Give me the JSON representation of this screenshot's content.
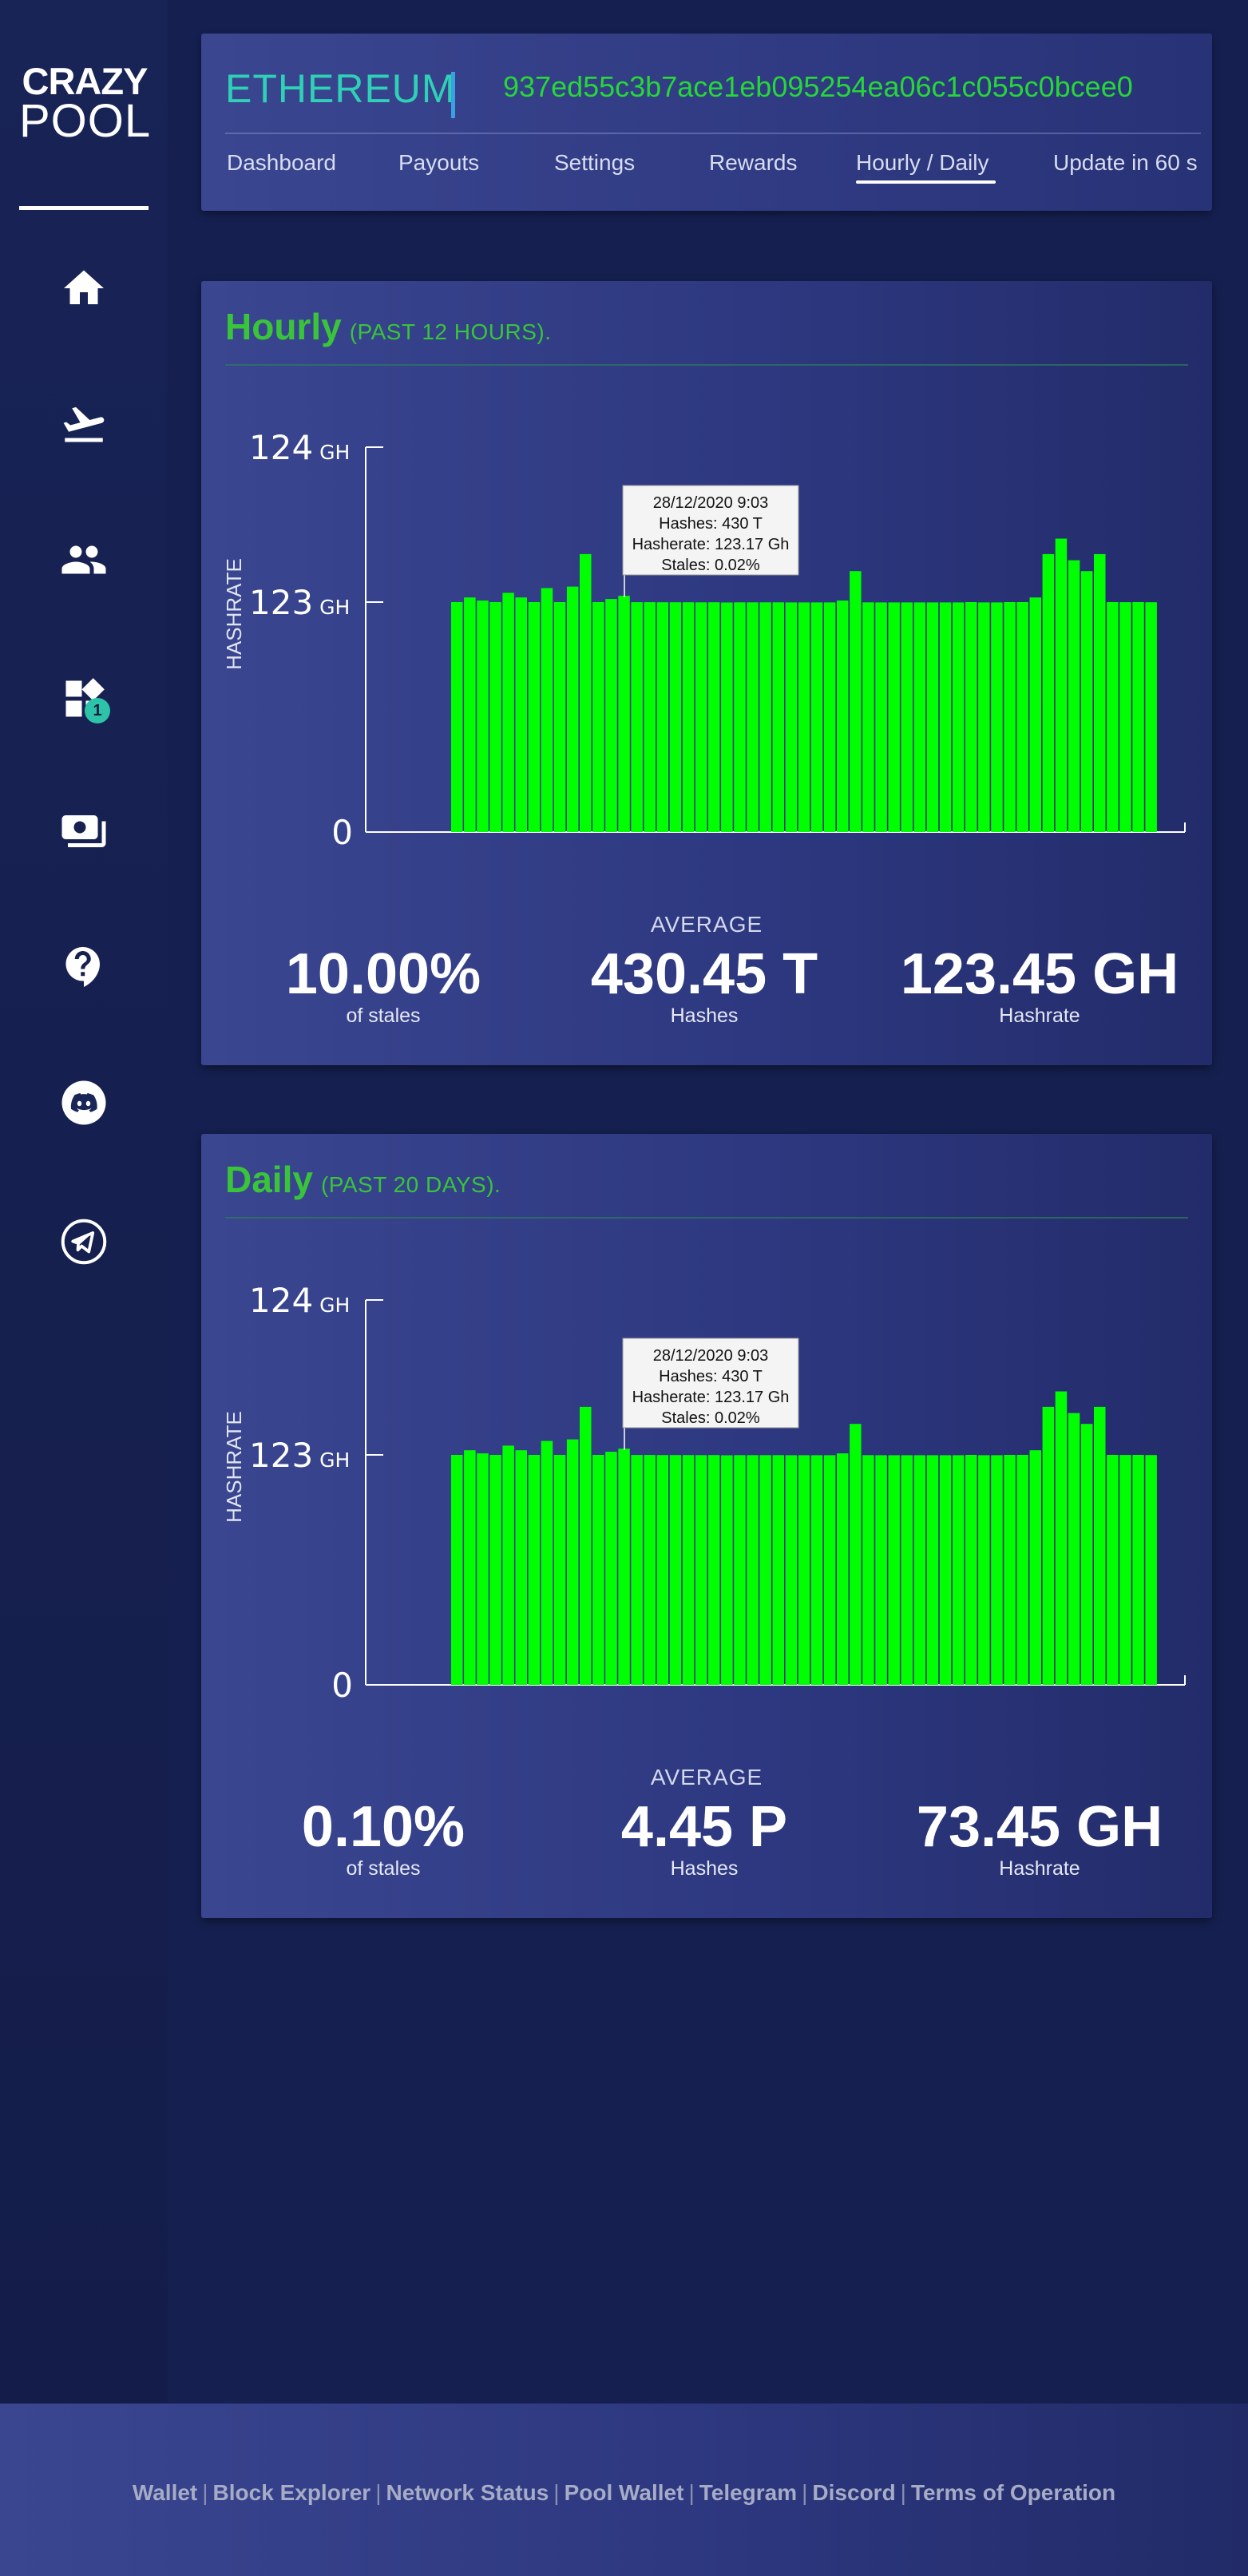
{
  "brand": {
    "line1": "CRAZY",
    "line2": "POOL"
  },
  "sidebar": {
    "items": [
      {
        "icon": "home-icon"
      },
      {
        "icon": "departure-icon"
      },
      {
        "icon": "users-icon"
      },
      {
        "icon": "widgets-icon",
        "badge": "1"
      },
      {
        "icon": "payments-icon"
      },
      {
        "icon": "help-icon"
      },
      {
        "icon": "discord-icon"
      },
      {
        "icon": "telegram-icon"
      }
    ]
  },
  "header": {
    "coin": "ETHEREUM",
    "wallet": "937ed55c3b7ace1eb095254ea06c1c055c0bcee0",
    "nav": [
      "Dashboard",
      "Payouts",
      "Settings",
      "Rewards",
      "Hourly / Daily",
      "Update in 60 s"
    ],
    "active_tab": "Hourly / Daily",
    "accent": "#2fd0b6",
    "wallet_color": "#27d639"
  },
  "hourly": {
    "title": "Hourly",
    "subtitle": "(PAST 12 HOURS).",
    "average_label": "AVERAGE",
    "stats": [
      {
        "value": "10.00%",
        "label": "of stales"
      },
      {
        "value": "430.45 T",
        "label": "Hashes"
      },
      {
        "value": "123.45 GH",
        "label": "Hashrate"
      }
    ],
    "tooltip": [
      "28/12/2020 9:03",
      "Hashes: 430 T",
      "Hasherate: 123.17 Gh",
      "Stales: 0.02%"
    ]
  },
  "daily": {
    "title": "Daily",
    "subtitle": "(PAST 20 DAYS).",
    "average_label": "AVERAGE",
    "stats": [
      {
        "value": "0.10%",
        "label": "of stales"
      },
      {
        "value": "4.45 P",
        "label": "Hashes"
      },
      {
        "value": "73.45 GH",
        "label": "Hashrate"
      }
    ],
    "tooltip": [
      "28/12/2020 9:03",
      "Hashes: 430 T",
      "Hasherate: 123.17 Gh",
      "Stales: 0.02%"
    ]
  },
  "chart_data": [
    {
      "type": "bar",
      "ylabel": "HASHRATE",
      "yticks": [
        {
          "v": "124",
          "u": "GH"
        },
        {
          "v": "123",
          "u": "GH"
        },
        {
          "v": "0",
          "u": ""
        }
      ],
      "color": "#00ff00",
      "values": [
        123.0,
        123.03,
        123.01,
        122.99,
        123.06,
        123.03,
        123.0,
        123.09,
        123.0,
        123.1,
        123.31,
        123.0,
        123.02,
        123.04,
        122.97,
        122.96,
        122.93,
        122.91,
        122.92,
        122.86,
        122.92,
        122.79,
        122.89,
        122.87,
        122.87,
        122.87,
        122.85,
        122.85,
        122.85,
        122.83,
        123.01,
        123.2,
        122.88,
        122.83,
        122.83,
        122.83,
        122.81,
        122.81,
        122.85,
        122.81,
        123.0,
        122.81,
        122.81,
        123.0,
        122.98,
        123.03,
        123.31,
        123.41,
        123.27,
        123.2,
        123.31,
        123.0,
        122.96,
        123.0,
        122.92
      ]
    },
    {
      "type": "bar",
      "ylabel": "HASHRATE",
      "yticks": [
        {
          "v": "124",
          "u": "GH"
        },
        {
          "v": "123",
          "u": "GH"
        },
        {
          "v": "0",
          "u": ""
        }
      ],
      "color": "#00ff00",
      "values": [
        123.0,
        123.03,
        123.01,
        122.99,
        123.06,
        123.03,
        123.0,
        123.09,
        123.0,
        123.1,
        123.31,
        123.0,
        123.02,
        123.04,
        122.97,
        122.96,
        122.93,
        122.91,
        122.92,
        122.86,
        122.92,
        122.79,
        122.89,
        122.87,
        122.87,
        122.87,
        122.85,
        122.85,
        122.85,
        122.83,
        123.01,
        123.2,
        122.88,
        122.83,
        122.83,
        122.83,
        122.81,
        122.81,
        122.85,
        122.81,
        123.0,
        122.81,
        122.81,
        123.0,
        122.98,
        123.03,
        123.31,
        123.41,
        123.27,
        123.2,
        123.31,
        123.0,
        122.96,
        123.0,
        122.92
      ]
    }
  ],
  "footer": {
    "links": [
      "Wallet",
      "Block Explorer",
      "Network Status",
      "Pool Wallet",
      "Telegram",
      "Discord",
      "Terms of Operation"
    ]
  }
}
